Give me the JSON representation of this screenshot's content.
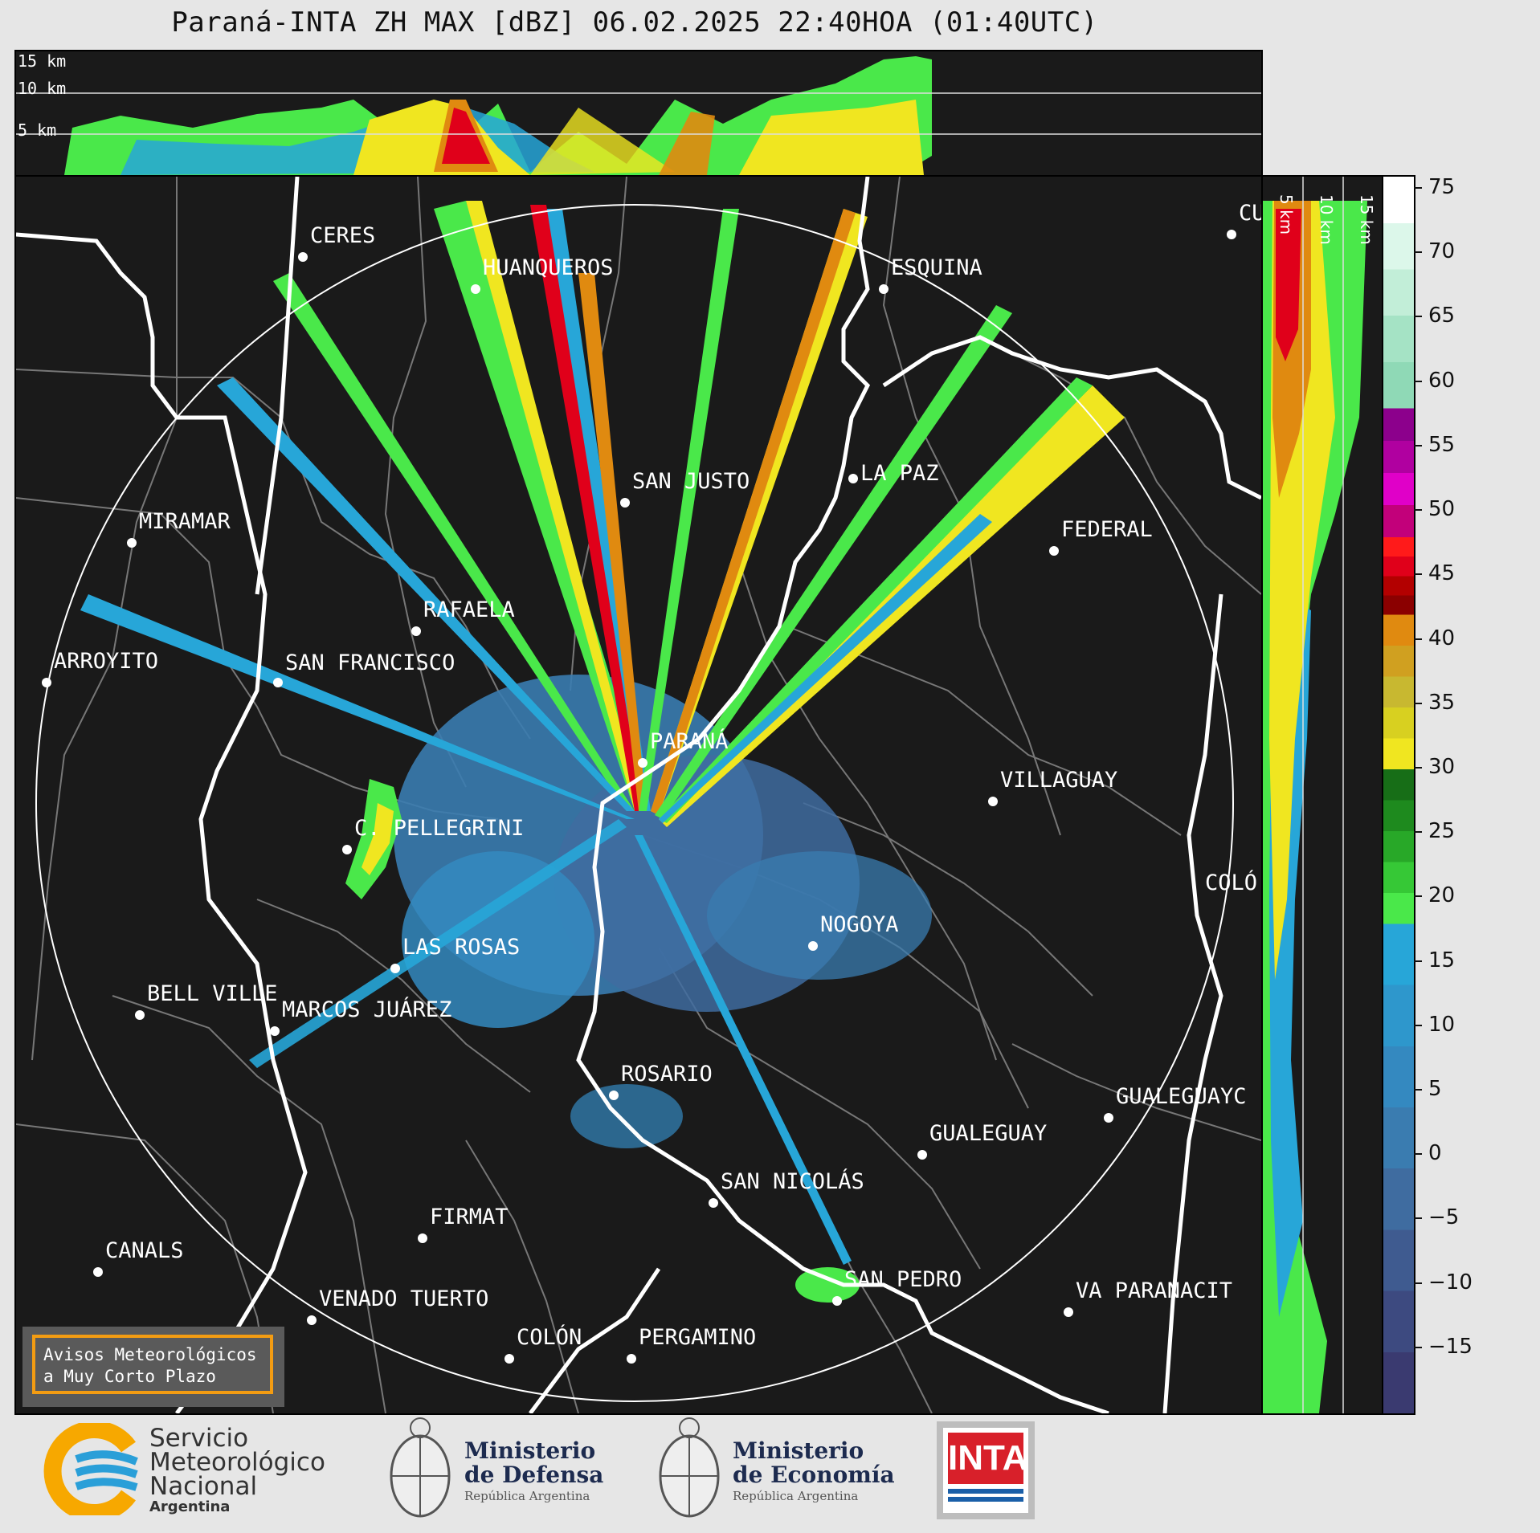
{
  "title": "Paraná-INTA ZH MAX [dBZ] 06.02.2025 22:40HOA (01:40UTC)",
  "top_panel": {
    "altitudes": [
      "15 km",
      "10 km",
      "5 km"
    ]
  },
  "side_panel": {
    "altitudes": [
      "5 km",
      "10 km",
      "15 km"
    ]
  },
  "cities": [
    {
      "name": "CERES"
    },
    {
      "name": "HUANQUEROS"
    },
    {
      "name": "ESQUINA"
    },
    {
      "name": "CU"
    },
    {
      "name": "SAN JUSTO"
    },
    {
      "name": "LA PAZ"
    },
    {
      "name": "MIRAMAR"
    },
    {
      "name": "FEDERAL"
    },
    {
      "name": "RAFAELA"
    },
    {
      "name": "ARROYITO"
    },
    {
      "name": "SAN FRANCISCO"
    },
    {
      "name": "PARANÁ"
    },
    {
      "name": "VILLAGUAY"
    },
    {
      "name": "C. PELLEGRINI"
    },
    {
      "name": "COLÓ"
    },
    {
      "name": "NOGOYA"
    },
    {
      "name": "LAS ROSAS"
    },
    {
      "name": "BELL VILLE"
    },
    {
      "name": "MARCOS JUÁREZ"
    },
    {
      "name": "ROSARIO"
    },
    {
      "name": "GUALEGUAYC"
    },
    {
      "name": "GUALEGUAY"
    },
    {
      "name": "SAN NICOLÁS"
    },
    {
      "name": "FIRMAT"
    },
    {
      "name": "CANALS"
    },
    {
      "name": "SAN PEDRO"
    },
    {
      "name": "VENADO TUERTO"
    },
    {
      "name": "VA PARANACIT"
    },
    {
      "name": "COLÓN"
    },
    {
      "name": "PERGAMINO"
    }
  ],
  "colorbar": {
    "ticks": [
      "75",
      "70",
      "65",
      "60",
      "55",
      "50",
      "45",
      "40",
      "35",
      "30",
      "25",
      "20",
      "15",
      "10",
      "5",
      "0",
      "−5",
      "−10",
      "−15"
    ],
    "stops": [
      {
        "from": 58,
        "to": 76,
        "colors": [
          "#8fd9b6",
          "#a5e3c5",
          "#c2eed8",
          "#dcf7ea",
          "#ffffff"
        ]
      },
      {
        "from": 48,
        "to": 58,
        "colors": [
          "#c2007a",
          "#e000c8",
          "#b000a0",
          "#8c008c"
        ]
      },
      {
        "from": 42,
        "to": 48,
        "colors": [
          "#8b0000",
          "#b30000",
          "#e0001a",
          "#ff1a1a"
        ]
      },
      {
        "from": 30,
        "to": 42,
        "colors": [
          "#f0e620",
          "#d8d020",
          "#c8b830",
          "#d0a020",
          "#e08a10"
        ]
      },
      {
        "from": 18,
        "to": 30,
        "colors": [
          "#4ae84a",
          "#36c836",
          "#28a828",
          "#1e8a1e",
          "#176e17"
        ]
      },
      {
        "from": -20,
        "to": 18,
        "colors": [
          "#3a3a70",
          "#3d4a80",
          "#3f5b90",
          "#3f6ca0",
          "#3a7cb0",
          "#3489c0",
          "#2e97cc",
          "#27a6d8"
        ]
      }
    ]
  },
  "avisos": {
    "line1": "Avisos Meteorológicos",
    "line2": "a Muy Corto Plazo"
  },
  "logos": {
    "smn": {
      "line1": "Servicio",
      "line2": "Meteorológico",
      "line3": "Nacional",
      "line4": "Argentina"
    },
    "defensa": {
      "line1": "Ministerio",
      "line2": "de Defensa",
      "line3": "República Argentina"
    },
    "economia": {
      "line1": "Ministerio",
      "line2": "de Economía",
      "line3": "República Argentina"
    },
    "inta": {
      "text": "INTA"
    }
  },
  "colors": {
    "background": "#1a1a1a",
    "orange_frame": "#f39c12",
    "inta_red": "#d8202a"
  }
}
